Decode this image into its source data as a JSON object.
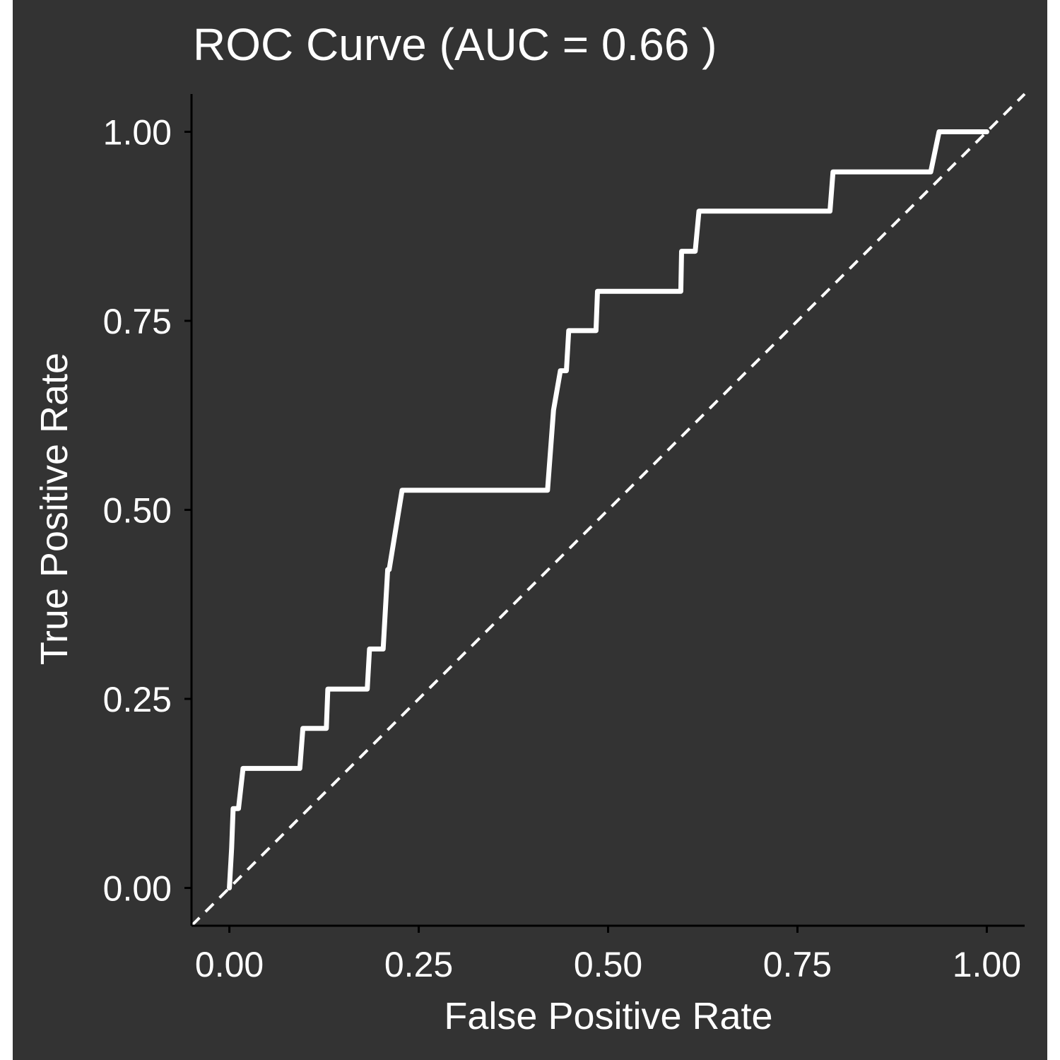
{
  "colors": {
    "page_bg": "#ffffff",
    "panel_bg": "#333333",
    "axis_line": "#000000",
    "curve": "#ffffff",
    "diagonal": "#ffffff",
    "text": "#ffffff"
  },
  "chart_data": {
    "type": "line",
    "title": "ROC Curve (AUC = 0.66 )",
    "xlabel": "False Positive Rate",
    "ylabel": "True Positive Rate",
    "xlim": [
      -0.05,
      1.05
    ],
    "ylim": [
      -0.05,
      1.05
    ],
    "x_ticks": [
      0,
      0.25,
      0.5,
      0.75,
      1
    ],
    "x_tick_labels": [
      "0.00",
      "0.25",
      "0.50",
      "0.75",
      "1.00"
    ],
    "y_ticks": [
      0,
      0.25,
      0.5,
      0.75,
      1
    ],
    "y_tick_labels": [
      "0.00",
      "0.25",
      "0.50",
      "0.75",
      "1.00"
    ],
    "grid": false,
    "legend": "none",
    "reference_line": {
      "style": "dashed",
      "x": [
        -0.05,
        1.05
      ],
      "y": [
        -0.05,
        1.05
      ]
    },
    "series": [
      {
        "x": [
          0.0,
          0.003,
          0.005,
          0.005,
          0.012,
          0.018,
          0.018,
          0.093,
          0.097,
          0.128,
          0.13,
          0.182,
          0.185,
          0.201,
          0.203,
          0.209,
          0.211,
          0.228,
          0.42,
          0.428,
          0.437,
          0.445,
          0.448,
          0.45,
          0.484,
          0.486,
          0.596,
          0.597,
          0.615,
          0.62,
          0.793,
          0.797,
          0.926,
          0.937,
          1.0
        ],
        "y": [
          0.0,
          0.053,
          0.105,
          0.105,
          0.105,
          0.158,
          0.158,
          0.158,
          0.211,
          0.211,
          0.263,
          0.263,
          0.316,
          0.316,
          0.316,
          0.421,
          0.421,
          0.526,
          0.526,
          0.632,
          0.684,
          0.684,
          0.737,
          0.737,
          0.737,
          0.789,
          0.789,
          0.842,
          0.842,
          0.895,
          0.895,
          0.947,
          0.947,
          1.0,
          1.0
        ]
      }
    ]
  }
}
